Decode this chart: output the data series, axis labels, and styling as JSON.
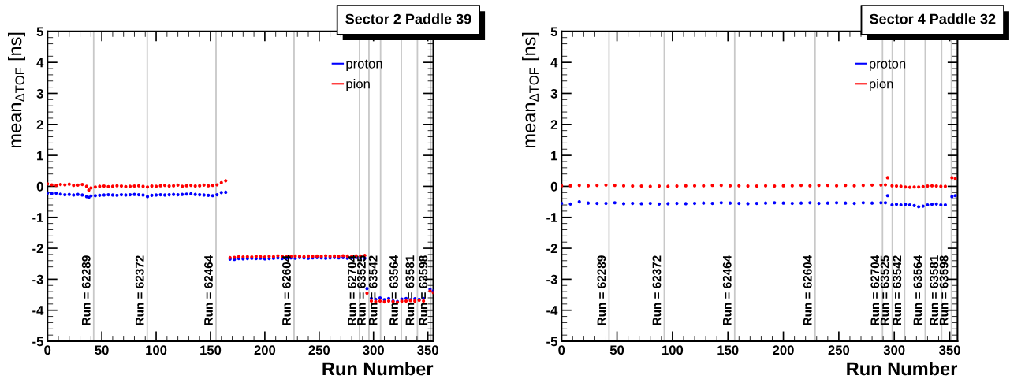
{
  "chart_data": [
    {
      "type": "scatter",
      "title": "Sector 2 Paddle 39",
      "xlabel": "Run Number",
      "ylabel": "mean$_{ΔTOF}$ [ns]",
      "marker": "circle",
      "legend": "top right",
      "grid": false,
      "xlim": [
        0,
        355
      ],
      "ylim": [
        -5,
        5
      ],
      "xticks": [
        0,
        50,
        100,
        150,
        200,
        250,
        300,
        350
      ],
      "yticks": [
        -5,
        -4,
        -3,
        -2,
        -1,
        0,
        1,
        2,
        3,
        4,
        5
      ],
      "x": [
        0,
        4,
        8,
        12,
        16,
        20,
        24,
        28,
        32,
        36,
        38,
        40,
        44,
        48,
        52,
        56,
        60,
        64,
        68,
        72,
        76,
        80,
        84,
        88,
        92,
        96,
        100,
        104,
        108,
        112,
        116,
        120,
        124,
        128,
        132,
        136,
        140,
        144,
        148,
        152,
        156,
        160,
        164,
        168,
        172,
        176,
        180,
        184,
        188,
        192,
        196,
        200,
        204,
        208,
        212,
        216,
        220,
        224,
        228,
        232,
        236,
        240,
        244,
        248,
        252,
        256,
        260,
        264,
        268,
        272,
        276,
        280,
        284,
        288,
        292,
        294,
        298,
        302,
        306,
        310,
        314,
        318,
        322,
        326,
        330,
        334,
        338,
        342,
        346,
        352,
        355
      ],
      "series": [
        {
          "name": "proton",
          "color": "#0000ff",
          "values": [
            -0.22,
            -0.23,
            -0.22,
            -0.25,
            -0.27,
            -0.26,
            -0.28,
            -0.26,
            -0.28,
            -0.33,
            -0.36,
            -0.31,
            -0.3,
            -0.29,
            -0.28,
            -0.27,
            -0.28,
            -0.29,
            -0.27,
            -0.28,
            -0.27,
            -0.26,
            -0.27,
            -0.28,
            -0.33,
            -0.29,
            -0.28,
            -0.27,
            -0.28,
            -0.27,
            -0.26,
            -0.27,
            -0.26,
            -0.25,
            -0.24,
            -0.26,
            -0.27,
            -0.28,
            -0.29,
            -0.3,
            -0.27,
            -0.2,
            -0.19,
            -2.35,
            -2.36,
            -2.33,
            -2.34,
            -2.33,
            -2.32,
            -2.33,
            -2.32,
            -2.34,
            -2.33,
            -2.32,
            -2.31,
            -2.33,
            -2.32,
            -2.31,
            -2.32,
            -2.3,
            -2.31,
            -2.32,
            -2.31,
            -2.3,
            -2.31,
            -2.32,
            -2.31,
            -2.3,
            -2.31,
            -2.3,
            -2.32,
            -2.31,
            -2.3,
            -2.31,
            -2.32,
            -3.3,
            -3.62,
            -3.65,
            -3.6,
            -3.66,
            -3.62,
            -3.7,
            -3.72,
            -3.64,
            -3.62,
            -3.66,
            -3.63,
            -3.65,
            -3.62,
            -3.32,
            -3.38
          ]
        },
        {
          "name": "pion",
          "color": "#ff0000",
          "values": [
            0.08,
            0.05,
            0.03,
            0.06,
            0.05,
            0.07,
            0.03,
            0.04,
            0.06,
            0.0,
            -0.12,
            -0.05,
            -0.02,
            0.0,
            0.01,
            -0.01,
            0.0,
            0.02,
            0.01,
            -0.01,
            0.0,
            0.01,
            0.02,
            0.0,
            -0.02,
            0.01,
            0.0,
            0.02,
            0.03,
            0.01,
            0.02,
            0.04,
            0.0,
            0.02,
            0.03,
            0.01,
            0.02,
            0.04,
            0.02,
            0.03,
            0.05,
            0.12,
            0.18,
            -2.3,
            -2.29,
            -2.27,
            -2.28,
            -2.27,
            -2.28,
            -2.26,
            -2.27,
            -2.28,
            -2.26,
            -2.27,
            -2.24,
            -2.26,
            -2.27,
            -2.26,
            -2.25,
            -2.26,
            -2.27,
            -2.25,
            -2.26,
            -2.25,
            -2.26,
            -2.24,
            -2.26,
            -2.25,
            -2.26,
            -2.24,
            -2.25,
            -2.26,
            -2.24,
            -2.25,
            -2.23,
            -3.45,
            -3.7,
            -3.72,
            -3.7,
            -3.73,
            -3.7,
            -3.72,
            -3.74,
            -3.71,
            -3.7,
            -3.69,
            -3.7,
            -3.68,
            -3.7,
            -3.38,
            -3.43
          ]
        }
      ],
      "ref_lines": [
        {
          "axis": "x",
          "value": 42.5,
          "color": "#c8c8c8"
        },
        {
          "axis": "x",
          "value": 91.8,
          "color": "#c8c8c8"
        },
        {
          "axis": "x",
          "value": 155.1,
          "color": "#c8c8c8"
        },
        {
          "axis": "x",
          "value": 226.9,
          "color": "#c8c8c8"
        },
        {
          "axis": "x",
          "value": 287.1,
          "color": "#c8c8c8"
        },
        {
          "axis": "x",
          "value": 295.8,
          "color": "#c8c8c8"
        },
        {
          "axis": "x",
          "value": 306.5,
          "color": "#c8c8c8"
        },
        {
          "axis": "x",
          "value": 325.6,
          "color": "#c8c8c8"
        },
        {
          "axis": "x",
          "value": 340.4,
          "color": "#c8c8c8"
        },
        {
          "axis": "x",
          "value": 352.7,
          "color": "#c8c8c8"
        }
      ],
      "annotations": [
        {
          "text": "Run = 62289",
          "x": 42.5,
          "y": -4.5
        },
        {
          "text": "Run = 62372",
          "x": 91.8,
          "y": -4.5
        },
        {
          "text": "Run = 62464",
          "x": 155.1,
          "y": -4.5
        },
        {
          "text": "Run = 62604",
          "x": 226.9,
          "y": -4.5
        },
        {
          "text": "Run = 62704",
          "x": 287.1,
          "y": -4.5
        },
        {
          "text": "Run = 63525",
          "x": 295.8,
          "y": -4.5
        },
        {
          "text": "Run = 63542",
          "x": 306.5,
          "y": -4.5
        },
        {
          "text": "Run = 63564",
          "x": 325.6,
          "y": -4.5
        },
        {
          "text": "Run = 63581",
          "x": 340.4,
          "y": -4.5
        },
        {
          "text": "Run = 63598",
          "x": 352.7,
          "y": -4.5
        }
      ]
    },
    {
      "type": "scatter",
      "title": "Sector 4 Paddle 32",
      "xlabel": "Run Number",
      "ylabel": "mean$_{ΔTOF}$ [ns]",
      "marker": "circle",
      "legend": "top right",
      "grid": false,
      "xlim": [
        0,
        357
      ],
      "ylim": [
        -5,
        5
      ],
      "xticks": [
        0,
        50,
        100,
        150,
        200,
        250,
        300,
        350
      ],
      "yticks": [
        -5,
        -4,
        -3,
        -2,
        -1,
        0,
        1,
        2,
        3,
        4,
        5
      ],
      "x": [
        0,
        8,
        16,
        24,
        32,
        40,
        48,
        56,
        64,
        72,
        80,
        88,
        96,
        104,
        112,
        120,
        128,
        136,
        144,
        152,
        160,
        168,
        176,
        184,
        192,
        200,
        208,
        216,
        224,
        232,
        240,
        248,
        256,
        264,
        272,
        280,
        288,
        292,
        294,
        298,
        302,
        306,
        310,
        314,
        318,
        322,
        326,
        330,
        334,
        338,
        342,
        346,
        352,
        355
      ],
      "series": [
        {
          "name": "proton",
          "color": "#0000ff",
          "values": [
            -0.55,
            -0.57,
            -0.5,
            -0.54,
            -0.55,
            -0.55,
            -0.53,
            -0.56,
            -0.55,
            -0.56,
            -0.55,
            -0.57,
            -0.56,
            -0.55,
            -0.56,
            -0.55,
            -0.54,
            -0.55,
            -0.53,
            -0.54,
            -0.55,
            -0.56,
            -0.55,
            -0.54,
            -0.53,
            -0.54,
            -0.55,
            -0.54,
            -0.53,
            -0.55,
            -0.54,
            -0.53,
            -0.54,
            -0.55,
            -0.53,
            -0.54,
            -0.53,
            -0.53,
            -0.3,
            -0.6,
            -0.58,
            -0.6,
            -0.58,
            -0.6,
            -0.62,
            -0.66,
            -0.64,
            -0.6,
            -0.58,
            -0.57,
            -0.6,
            -0.6,
            -0.33,
            -0.3
          ]
        },
        {
          "name": "pion",
          "color": "#ff0000",
          "values": [
            0.02,
            0.02,
            0.03,
            0.02,
            0.03,
            0.04,
            0.03,
            0.02,
            0.01,
            0.01,
            0.0,
            0.01,
            0.0,
            0.01,
            0.02,
            0.02,
            0.02,
            0.03,
            0.03,
            0.02,
            0.02,
            0.01,
            0.01,
            0.02,
            0.01,
            0.02,
            0.02,
            0.03,
            0.02,
            0.03,
            0.03,
            0.02,
            0.03,
            0.02,
            0.03,
            0.04,
            0.04,
            0.05,
            0.28,
            0.02,
            0.01,
            0.0,
            -0.02,
            -0.03,
            -0.02,
            -0.02,
            -0.01,
            0.01,
            0.02,
            0.01,
            0.0,
            0.0,
            0.28,
            0.25
          ]
        }
      ],
      "ref_lines": [
        {
          "axis": "x",
          "value": 42.8,
          "color": "#c8c8c8"
        },
        {
          "axis": "x",
          "value": 92.6,
          "color": "#c8c8c8"
        },
        {
          "axis": "x",
          "value": 156.1,
          "color": "#c8c8c8"
        },
        {
          "axis": "x",
          "value": 228.6,
          "color": "#c8c8c8"
        },
        {
          "axis": "x",
          "value": 289.4,
          "color": "#c8c8c8"
        },
        {
          "axis": "x",
          "value": 298.2,
          "color": "#c8c8c8"
        },
        {
          "axis": "x",
          "value": 309.3,
          "color": "#c8c8c8"
        },
        {
          "axis": "x",
          "value": 327.9,
          "color": "#c8c8c8"
        },
        {
          "axis": "x",
          "value": 342.7,
          "color": "#c8c8c8"
        },
        {
          "axis": "x",
          "value": 351.5,
          "color": "#c8c8c8"
        }
      ],
      "annotations": [
        {
          "text": "Run = 62289",
          "x": 42.8,
          "y": -4.5
        },
        {
          "text": "Run = 62372",
          "x": 92.6,
          "y": -4.5
        },
        {
          "text": "Run = 62464",
          "x": 156.1,
          "y": -4.5
        },
        {
          "text": "Run = 62604",
          "x": 228.6,
          "y": -4.5
        },
        {
          "text": "Run = 62704",
          "x": 289.4,
          "y": -4.5
        },
        {
          "text": "Run = 63525",
          "x": 298.2,
          "y": -4.5
        },
        {
          "text": "Run = 63542",
          "x": 309.3,
          "y": -4.5
        },
        {
          "text": "Run = 63564",
          "x": 327.9,
          "y": -4.5
        },
        {
          "text": "Run = 63581",
          "x": 342.7,
          "y": -4.5
        },
        {
          "text": "Run = 63598",
          "x": 351.5,
          "y": -4.5
        }
      ]
    }
  ]
}
